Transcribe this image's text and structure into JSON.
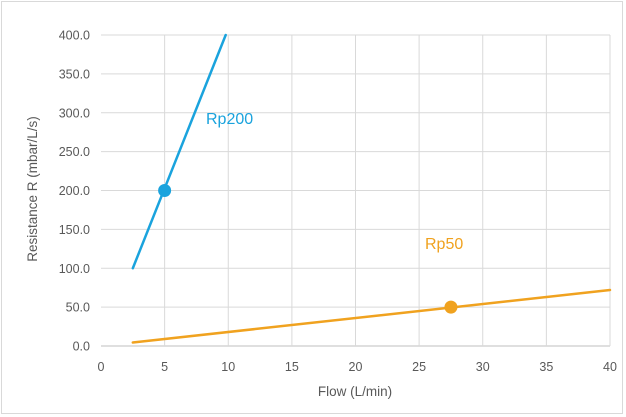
{
  "chart_data": {
    "type": "line",
    "xlabel": "Flow (L/min)",
    "ylabel": "Resistance R (mbar/L/s)",
    "xlim": [
      0,
      40
    ],
    "ylim": [
      0,
      400
    ],
    "x_ticks": [
      "0",
      "5",
      "10",
      "15",
      "20",
      "25",
      "30",
      "35",
      "40"
    ],
    "y_ticks": [
      "0.0",
      "50.0",
      "100.0",
      "150.0",
      "200.0",
      "250.0",
      "300.0",
      "350.0",
      "400.0"
    ],
    "grid": true,
    "series": [
      {
        "name": "Rp200",
        "color": "#1aa3dd",
        "x": [
          2.5,
          9.8
        ],
        "y": [
          100,
          400
        ],
        "marker": {
          "x": 5,
          "y": 200
        }
      },
      {
        "name": "Rp50",
        "color": "#f0a21f",
        "x": [
          2.5,
          40
        ],
        "y": [
          4.5,
          72
        ],
        "marker": {
          "x": 27.5,
          "y": 50
        }
      }
    ]
  }
}
